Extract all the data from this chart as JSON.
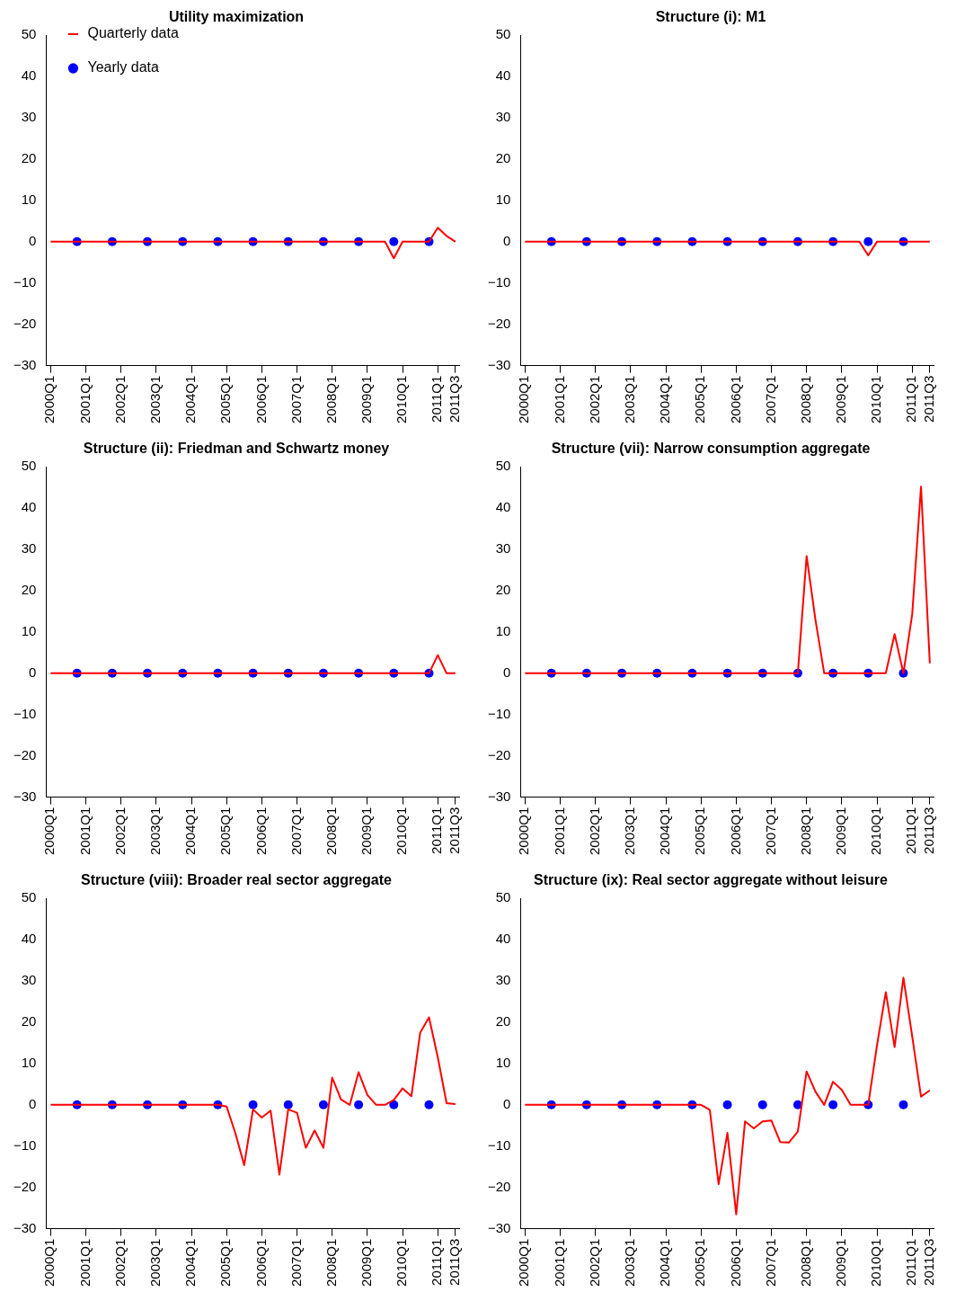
{
  "chart_data": [
    {
      "type": "line",
      "title": "Utility maximization",
      "legend": "top left",
      "ylim": [
        -30,
        50
      ],
      "yticks": [
        -30,
        -20,
        -10,
        0,
        10,
        20,
        30,
        40,
        50
      ],
      "categories": [
        "2000Q1",
        null,
        null,
        null,
        "2001Q1",
        null,
        null,
        null,
        "2002Q1",
        null,
        null,
        null,
        "2003Q1",
        null,
        null,
        null,
        "2004Q1",
        null,
        null,
        null,
        "2005Q1",
        null,
        null,
        null,
        "2006Q1",
        null,
        null,
        null,
        "2007Q1",
        null,
        null,
        null,
        "2008Q1",
        null,
        null,
        null,
        "2009Q1",
        null,
        null,
        null,
        "2010Q1",
        null,
        null,
        null,
        "2011Q1",
        null,
        "2011Q3"
      ],
      "series": [
        {
          "name": "Quarterly data",
          "type": "line",
          "marker": "none",
          "color": "#ff0000",
          "values": [
            0,
            0,
            0,
            0,
            0,
            0,
            0,
            0,
            0,
            0,
            0,
            0,
            0,
            0,
            0,
            0,
            0,
            0,
            0,
            0,
            0,
            0,
            0,
            0,
            0,
            0,
            0,
            0,
            0,
            0,
            0,
            0,
            0,
            0,
            0,
            0,
            0,
            0,
            0,
            -4,
            0,
            0,
            0,
            0,
            3.4,
            1.4,
            0
          ]
        },
        {
          "name": "Yearly data",
          "type": "scatter",
          "marker": "circle",
          "color": "#0000ff",
          "values": [
            null,
            null,
            null,
            0,
            null,
            null,
            null,
            0,
            null,
            null,
            null,
            0,
            null,
            null,
            null,
            0,
            null,
            null,
            null,
            0,
            null,
            null,
            null,
            0,
            null,
            null,
            null,
            0,
            null,
            null,
            null,
            0,
            null,
            null,
            null,
            0,
            null,
            null,
            null,
            0,
            null,
            null,
            null,
            0,
            null,
            null,
            null
          ]
        }
      ]
    },
    {
      "type": "line",
      "title": "Structure (i): M1",
      "ylim": [
        -30,
        50
      ],
      "yticks": [
        -30,
        -20,
        -10,
        0,
        10,
        20,
        30,
        40,
        50
      ],
      "categories": [
        "2000Q1",
        null,
        null,
        null,
        "2001Q1",
        null,
        null,
        null,
        "2002Q1",
        null,
        null,
        null,
        "2003Q1",
        null,
        null,
        null,
        "2004Q1",
        null,
        null,
        null,
        "2005Q1",
        null,
        null,
        null,
        "2006Q1",
        null,
        null,
        null,
        "2007Q1",
        null,
        null,
        null,
        "2008Q1",
        null,
        null,
        null,
        "2009Q1",
        null,
        null,
        null,
        "2010Q1",
        null,
        null,
        null,
        "2011Q1",
        null,
        "2011Q3"
      ],
      "series": [
        {
          "type": "line",
          "marker": "none",
          "color": "#ff0000",
          "values": [
            0,
            0,
            0,
            0,
            0,
            0,
            0,
            0,
            0,
            0,
            0,
            0,
            0,
            0,
            0,
            0,
            0,
            0,
            0,
            0,
            0,
            0,
            0,
            0,
            0,
            0,
            0,
            0,
            0,
            0,
            0,
            0,
            0,
            0,
            0,
            0,
            0,
            0,
            0,
            -3.3,
            0,
            0,
            0,
            0,
            0,
            0,
            0
          ]
        },
        {
          "type": "scatter",
          "marker": "circle",
          "color": "#0000ff",
          "values": [
            null,
            null,
            null,
            0,
            null,
            null,
            null,
            0,
            null,
            null,
            null,
            0,
            null,
            null,
            null,
            0,
            null,
            null,
            null,
            0,
            null,
            null,
            null,
            0,
            null,
            null,
            null,
            0,
            null,
            null,
            null,
            0,
            null,
            null,
            null,
            0,
            null,
            null,
            null,
            0,
            null,
            null,
            null,
            0,
            null,
            null,
            null
          ]
        }
      ]
    },
    {
      "type": "line",
      "title": "Structure (ii): Friedman and Schwartz money",
      "ylim": [
        -30,
        50
      ],
      "yticks": [
        -30,
        -20,
        -10,
        0,
        10,
        20,
        30,
        40,
        50
      ],
      "categories": [
        "2000Q1",
        null,
        null,
        null,
        "2001Q1",
        null,
        null,
        null,
        "2002Q1",
        null,
        null,
        null,
        "2003Q1",
        null,
        null,
        null,
        "2004Q1",
        null,
        null,
        null,
        "2005Q1",
        null,
        null,
        null,
        "2006Q1",
        null,
        null,
        null,
        "2007Q1",
        null,
        null,
        null,
        "2008Q1",
        null,
        null,
        null,
        "2009Q1",
        null,
        null,
        null,
        "2010Q1",
        null,
        null,
        null,
        "2011Q1",
        null,
        "2011Q3"
      ],
      "series": [
        {
          "type": "line",
          "marker": "none",
          "color": "#ff0000",
          "values": [
            0,
            0,
            0,
            0,
            0,
            0,
            0,
            0,
            0,
            0,
            0,
            0,
            0,
            0,
            0,
            0,
            0,
            0,
            0,
            0,
            0,
            0,
            0,
            0,
            0,
            0,
            0,
            0,
            0,
            0,
            0,
            0,
            0,
            0,
            0,
            0,
            0,
            0,
            0,
            0,
            0,
            0,
            0,
            0,
            4.4,
            0,
            0
          ]
        },
        {
          "type": "scatter",
          "marker": "circle",
          "color": "#0000ff",
          "values": [
            null,
            null,
            null,
            0,
            null,
            null,
            null,
            0,
            null,
            null,
            null,
            0,
            null,
            null,
            null,
            0,
            null,
            null,
            null,
            0,
            null,
            null,
            null,
            0,
            null,
            null,
            null,
            0,
            null,
            null,
            null,
            0,
            null,
            null,
            null,
            0,
            null,
            null,
            null,
            0,
            null,
            null,
            null,
            0,
            null,
            null,
            null
          ]
        }
      ]
    },
    {
      "type": "line",
      "title": "Structure (vii): Narrow consumption aggregate",
      "ylim": [
        -30,
        50
      ],
      "yticks": [
        -30,
        -20,
        -10,
        0,
        10,
        20,
        30,
        40,
        50
      ],
      "categories": [
        "2000Q1",
        null,
        null,
        null,
        "2001Q1",
        null,
        null,
        null,
        "2002Q1",
        null,
        null,
        null,
        "2003Q1",
        null,
        null,
        null,
        "2004Q1",
        null,
        null,
        null,
        "2005Q1",
        null,
        null,
        null,
        "2006Q1",
        null,
        null,
        null,
        "2007Q1",
        null,
        null,
        null,
        "2008Q1",
        null,
        null,
        null,
        "2009Q1",
        null,
        null,
        null,
        "2010Q1",
        null,
        null,
        null,
        "2011Q1",
        null,
        "2011Q3"
      ],
      "series": [
        {
          "type": "line",
          "marker": "none",
          "color": "#ff0000",
          "values": [
            0,
            0,
            0,
            0,
            0,
            0,
            0,
            0,
            0,
            0,
            0,
            0,
            0,
            0,
            0,
            0,
            0,
            0,
            0,
            0,
            0,
            0,
            0,
            0,
            0,
            0,
            0,
            0,
            0,
            0,
            0,
            0,
            28.4,
            13,
            0,
            0,
            0,
            0,
            0,
            0,
            0,
            0,
            9.5,
            0,
            14.3,
            45.2,
            2.4
          ]
        },
        {
          "type": "scatter",
          "marker": "circle",
          "color": "#0000ff",
          "values": [
            null,
            null,
            null,
            0,
            null,
            null,
            null,
            0,
            null,
            null,
            null,
            0,
            null,
            null,
            null,
            0,
            null,
            null,
            null,
            0,
            null,
            null,
            null,
            0,
            null,
            null,
            null,
            0,
            null,
            null,
            null,
            0,
            null,
            null,
            null,
            0,
            null,
            null,
            null,
            0,
            null,
            null,
            null,
            0,
            null,
            null,
            null
          ]
        }
      ]
    },
    {
      "type": "line",
      "title": "Structure (viii): Broader real sector aggregate",
      "ylim": [
        -30,
        50
      ],
      "yticks": [
        -30,
        -20,
        -10,
        0,
        10,
        20,
        30,
        40,
        50
      ],
      "categories": [
        "2000Q1",
        null,
        null,
        null,
        "2001Q1",
        null,
        null,
        null,
        "2002Q1",
        null,
        null,
        null,
        "2003Q1",
        null,
        null,
        null,
        "2004Q1",
        null,
        null,
        null,
        "2005Q1",
        null,
        null,
        null,
        "2006Q1",
        null,
        null,
        null,
        "2007Q1",
        null,
        null,
        null,
        "2008Q1",
        null,
        null,
        null,
        "2009Q1",
        null,
        null,
        null,
        "2010Q1",
        null,
        null,
        null,
        "2011Q1",
        null,
        "2011Q3"
      ],
      "series": [
        {
          "type": "line",
          "marker": "none",
          "color": "#ff0000",
          "values": [
            0,
            0,
            0,
            0,
            0,
            0,
            0,
            0,
            0,
            0,
            0,
            0,
            0,
            0,
            0,
            0,
            0,
            0,
            0,
            0,
            -0.4,
            -6.9,
            -14.6,
            -1.1,
            -3.1,
            -1.4,
            -16.9,
            -1.1,
            -1.9,
            -10.4,
            -6.2,
            -10.4,
            6.6,
            1.3,
            0,
            7.9,
            2.4,
            0,
            0,
            1.2,
            4,
            2.1,
            17.5,
            21.2,
            11.5,
            0.4,
            0.2
          ]
        },
        {
          "type": "scatter",
          "marker": "circle",
          "color": "#0000ff",
          "values": [
            null,
            null,
            null,
            0,
            null,
            null,
            null,
            0,
            null,
            null,
            null,
            0,
            null,
            null,
            null,
            0,
            null,
            null,
            null,
            0,
            null,
            null,
            null,
            0,
            null,
            null,
            null,
            0,
            null,
            null,
            null,
            0,
            null,
            null,
            null,
            0,
            null,
            null,
            null,
            0,
            null,
            null,
            null,
            0,
            null,
            null,
            null
          ]
        }
      ]
    },
    {
      "type": "line",
      "title": "Structure (ix): Real sector aggregate without leisure",
      "ylim": [
        -30,
        50
      ],
      "yticks": [
        -30,
        -20,
        -10,
        0,
        10,
        20,
        30,
        40,
        50
      ],
      "categories": [
        "2000Q1",
        null,
        null,
        null,
        "2001Q1",
        null,
        null,
        null,
        "2002Q1",
        null,
        null,
        null,
        "2003Q1",
        null,
        null,
        null,
        "2004Q1",
        null,
        null,
        null,
        "2005Q1",
        null,
        null,
        null,
        "2006Q1",
        null,
        null,
        null,
        "2007Q1",
        null,
        null,
        null,
        "2008Q1",
        null,
        null,
        null,
        "2009Q1",
        null,
        null,
        null,
        "2010Q1",
        null,
        null,
        null,
        "2011Q1",
        null,
        "2011Q3"
      ],
      "series": [
        {
          "type": "line",
          "marker": "none",
          "color": "#ff0000",
          "values": [
            0,
            0,
            0,
            0,
            0,
            0,
            0,
            0,
            0,
            0,
            0,
            0,
            0,
            0,
            0,
            0,
            0,
            0,
            0,
            0,
            0,
            -1.2,
            -19.2,
            -6.8,
            -26.5,
            -4,
            -5.7,
            -4,
            -3.8,
            -9,
            -9.1,
            -6.5,
            8.1,
            3.2,
            0,
            5.6,
            3.6,
            0,
            0,
            0,
            14.4,
            27.3,
            14,
            30.8,
            16.6,
            2,
            3.5
          ]
        },
        {
          "type": "scatter",
          "marker": "circle",
          "color": "#0000ff",
          "values": [
            null,
            null,
            null,
            0,
            null,
            null,
            null,
            0,
            null,
            null,
            null,
            0,
            null,
            null,
            null,
            0,
            null,
            null,
            null,
            0,
            null,
            null,
            null,
            0,
            null,
            null,
            null,
            0,
            null,
            null,
            null,
            0,
            null,
            null,
            null,
            0,
            null,
            null,
            null,
            0,
            null,
            null,
            null,
            0,
            null,
            null,
            null
          ]
        }
      ]
    }
  ]
}
